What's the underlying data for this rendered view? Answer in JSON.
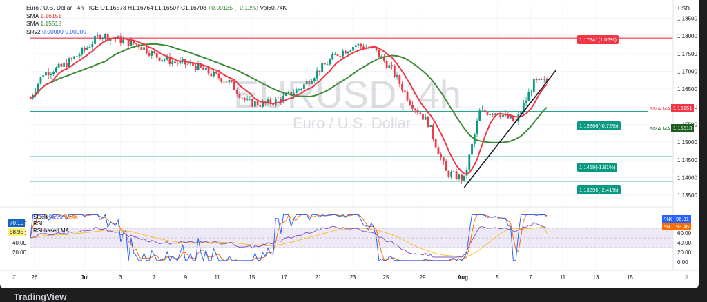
{
  "legend": {
    "symbol": "Euro / U.S. Dollar · 4h · ICE",
    "open": "O1.16573",
    "high": "H1.16764",
    "low": "L1.16507",
    "close": "C1.16708",
    "change": "+0.00135 (+0.12%)",
    "volume": "Vol60.74K",
    "sma1_label": "SMA",
    "sma1_value": "1.16151",
    "sma2_label": "SMA",
    "sma2_value": "1.15518",
    "srv2_label": "SRv2",
    "srv2_values": "0.00000  0.00000"
  },
  "currency": "USD",
  "watermark": {
    "symbol": "EURUSD, 4h",
    "name": "Euro / U.S. Dollar"
  },
  "price_axis": [
    "1.18500",
    "1.18000",
    "1.17500",
    "1.17000",
    "1.16500",
    "1.16000",
    "1.15500",
    "1.15000",
    "1.14500",
    "1.14000",
    "1.13500"
  ],
  "level_tags": [
    {
      "text": "1.17941(1.06%)",
      "color": "red"
    },
    {
      "text": "1.15866(-0.72%)",
      "color": "green"
    },
    {
      "text": "1.1459(-1.81%)",
      "color": "green"
    },
    {
      "text": "1.13896(-2.41%)",
      "color": "green"
    }
  ],
  "axis_tags": {
    "sma_red": "SMA:MA",
    "sma_red_val": "1.16151",
    "sma_dark": "SMA:MA",
    "sma_dark_val": "1.15518"
  },
  "oscillator": {
    "stoch_label": "Stoch",
    "k": "96.31",
    "d": "93.46",
    "rsi_label": "RSI",
    "rsi_ma_label": "RSI-based MA",
    "left_val_1": "70.10",
    "left_val_2": "58.95",
    "axis": [
      "80.00",
      "60.00",
      "40.00",
      "20.00",
      "0.00"
    ],
    "left_axis": [
      "80.00",
      "60.00",
      "40.00",
      "20.00"
    ],
    "k_tag_label": "%K",
    "k_tag": "96.31",
    "d_tag_label": "%D",
    "d_tag": "93.46"
  },
  "time_axis": [
    "26",
    "Jul",
    "3",
    "7",
    "9",
    "11",
    "15",
    "17",
    "21",
    "23",
    "25",
    "29",
    "Aug",
    "5",
    "7",
    "11",
    "13",
    "15"
  ],
  "footer": {
    "logo": "TradingView",
    "left_glyph": "Z",
    "right_glyph": "A"
  },
  "colors": {
    "up": "#089981",
    "down": "#f23645",
    "sma_fast": "#f23645",
    "sma_slow": "#3d8b37",
    "rsi_band": "#7e57c2",
    "trendline": "#131722"
  },
  "chart_data": {
    "type": "candlestick",
    "title": "EURUSD, 4h",
    "subtitle": "Euro / U.S. Dollar",
    "ylabel": "USD",
    "ylim": [
      1.1325,
      1.189
    ],
    "horizontal_levels": [
      1.17941,
      1.15866,
      1.1459,
      1.13896
    ],
    "close_path": [
      {
        "t": 0,
        "close": 1.1625
      },
      {
        "t": 5,
        "close": 1.1695
      },
      {
        "t": 12,
        "close": 1.1712
      },
      {
        "t": 20,
        "close": 1.1755
      },
      {
        "t": 27,
        "close": 1.1803
      },
      {
        "t": 34,
        "close": 1.179
      },
      {
        "t": 42,
        "close": 1.1775
      },
      {
        "t": 49,
        "close": 1.1742
      },
      {
        "t": 56,
        "close": 1.1725
      },
      {
        "t": 63,
        "close": 1.1718
      },
      {
        "t": 70,
        "close": 1.1693
      },
      {
        "t": 77,
        "close": 1.167
      },
      {
        "t": 84,
        "close": 1.1612
      },
      {
        "t": 91,
        "close": 1.1607
      },
      {
        "t": 98,
        "close": 1.1625
      },
      {
        "t": 105,
        "close": 1.1655
      },
      {
        "t": 112,
        "close": 1.1705
      },
      {
        "t": 119,
        "close": 1.175
      },
      {
        "t": 126,
        "close": 1.1775
      },
      {
        "t": 133,
        "close": 1.1762
      },
      {
        "t": 140,
        "close": 1.1705
      },
      {
        "t": 147,
        "close": 1.1615
      },
      {
        "t": 154,
        "close": 1.1555
      },
      {
        "t": 161,
        "close": 1.1415
      },
      {
        "t": 168,
        "close": 1.1395
      },
      {
        "t": 174,
        "close": 1.1585
      },
      {
        "t": 181,
        "close": 1.1585
      },
      {
        "t": 188,
        "close": 1.1555
      },
      {
        "t": 195,
        "close": 1.1668
      },
      {
        "t": 200,
        "close": 1.1671
      }
    ],
    "series": [
      {
        "name": "SMA",
        "last": 1.16151
      },
      {
        "name": "SMA",
        "last": 1.15518
      }
    ],
    "oscillator": {
      "ylim": [
        0,
        100
      ],
      "k_last": 96.31,
      "d_last": 93.46,
      "rsi_last": 70.1,
      "rsi_ma_last": 58.95
    }
  }
}
